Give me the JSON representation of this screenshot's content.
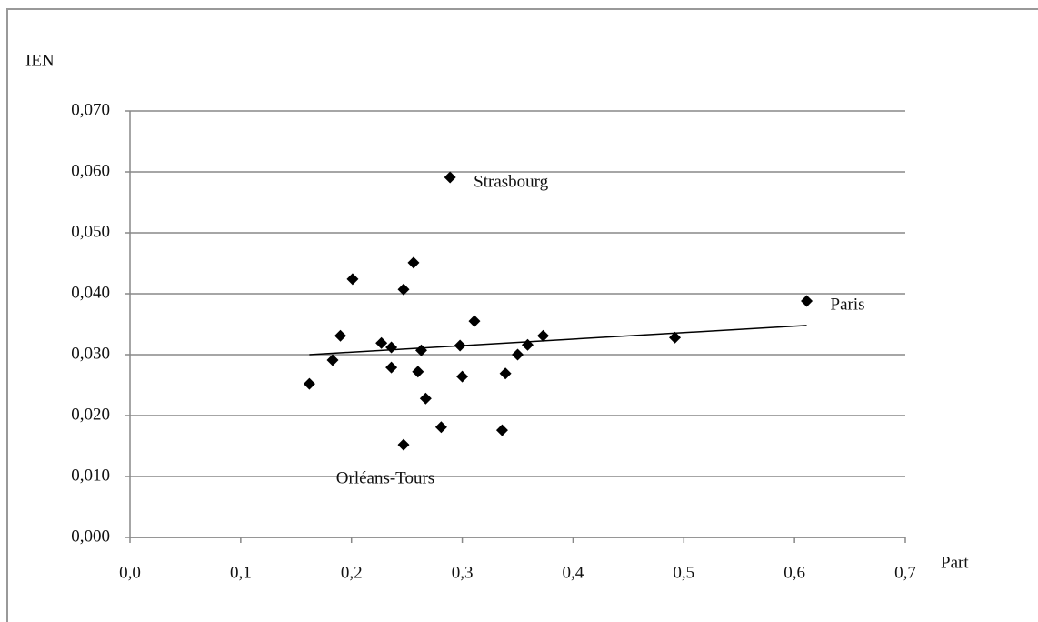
{
  "chart_data": {
    "type": "scatter",
    "ylabel": "IEN",
    "xlabel": "Part",
    "x": [
      0.162,
      0.183,
      0.19,
      0.201,
      0.227,
      0.236,
      0.236,
      0.247,
      0.247,
      0.256,
      0.26,
      0.263,
      0.267,
      0.281,
      0.289,
      0.298,
      0.3,
      0.311,
      0.336,
      0.339,
      0.35,
      0.359,
      0.373,
      0.492,
      0.611
    ],
    "values": [
      0.0252,
      0.0291,
      0.0331,
      0.0424,
      0.0319,
      0.0312,
      0.0279,
      0.0152,
      0.0407,
      0.0451,
      0.0272,
      0.0307,
      0.0228,
      0.0181,
      0.0591,
      0.0315,
      0.0264,
      0.0355,
      0.0176,
      0.0269,
      0.03,
      0.0316,
      0.0331,
      0.0328,
      0.0388
    ],
    "color": "#000000",
    "trendline": {
      "x": [
        0.162,
        0.611
      ],
      "y": [
        0.03,
        0.0348
      ]
    },
    "annotations": [
      "Strasbourg",
      "Paris",
      "Orléans-Tours"
    ],
    "xlim": [
      0,
      0.7
    ],
    "ylim": [
      0,
      0.07
    ],
    "xticks": [
      {
        "value": 0,
        "label": "0,0"
      },
      {
        "value": 0.1,
        "label": "0,1"
      },
      {
        "value": 0.2,
        "label": "0,2"
      },
      {
        "value": 0.3,
        "label": "0,3"
      },
      {
        "value": 0.4,
        "label": "0,4"
      },
      {
        "value": 0.5,
        "label": "0,5"
      },
      {
        "value": 0.6,
        "label": "0,6"
      },
      {
        "value": 0.7,
        "label": "0,7"
      }
    ],
    "yticks": [
      {
        "value": 0,
        "label": "0,000"
      },
      {
        "value": 0.01,
        "label": "0,010"
      },
      {
        "value": 0.02,
        "label": "0,020"
      },
      {
        "value": 0.03,
        "label": "0,030"
      },
      {
        "value": 0.04,
        "label": "0,040"
      },
      {
        "value": 0.05,
        "label": "0,050"
      },
      {
        "value": 0.06,
        "label": "0,060"
      },
      {
        "value": 0.07,
        "label": "0,070"
      }
    ],
    "grid": true
  }
}
